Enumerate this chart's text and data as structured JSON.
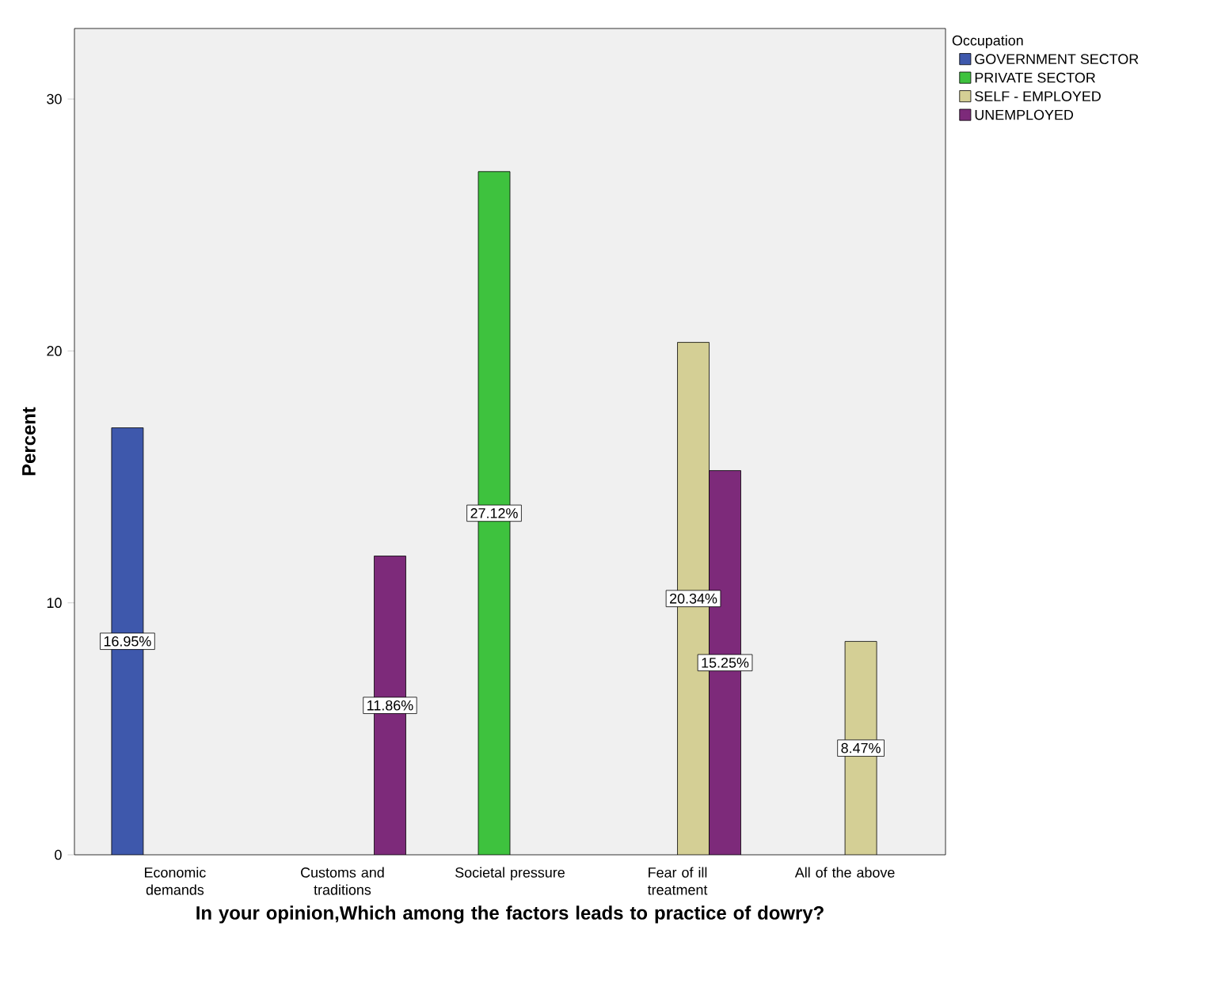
{
  "chart_data": {
    "type": "bar",
    "xlabel": "In your opinion,Which among the factors leads to practice of dowry?",
    "ylabel": "Percent",
    "legend_title": "Occupation",
    "categories": [
      "Economic demands",
      "Customs and traditions",
      "Societal pressure",
      "Fear of ill treatment",
      "All of the above"
    ],
    "series": [
      {
        "name": "GOVERNMENT SECTOR",
        "color": "#3e58ac",
        "values": [
          16.95,
          null,
          null,
          null,
          null
        ],
        "value_labels": [
          "16.95%",
          null,
          null,
          null,
          null
        ]
      },
      {
        "name": "PRIVATE SECTOR",
        "color": "#3ec23e",
        "values": [
          null,
          null,
          27.12,
          null,
          null
        ],
        "value_labels": [
          null,
          null,
          "27.12%",
          null,
          null
        ]
      },
      {
        "name": "SELF - EMPLOYED",
        "color": "#d4cf95",
        "values": [
          null,
          null,
          null,
          20.34,
          8.47
        ],
        "value_labels": [
          null,
          null,
          null,
          "20.34%",
          "8.47%"
        ]
      },
      {
        "name": "UNEMPLOYED",
        "color": "#7d2a7a",
        "values": [
          null,
          11.86,
          null,
          15.25,
          null
        ],
        "value_labels": [
          null,
          "11.86%",
          null,
          "15.25%",
          null
        ]
      }
    ],
    "ylim": [
      0,
      32.8
    ],
    "yticks": [
      0,
      10,
      20,
      30
    ],
    "grid": false,
    "legend": "top right"
  }
}
